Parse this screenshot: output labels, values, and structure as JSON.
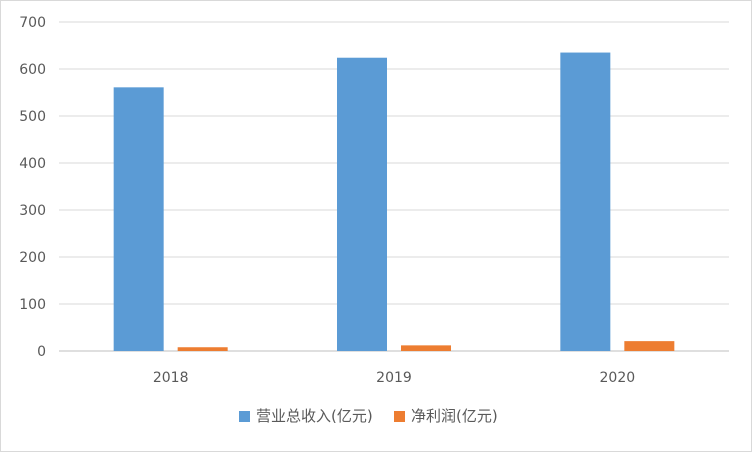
{
  "chart_data": {
    "type": "bar",
    "categories": [
      "2018",
      "2019",
      "2020"
    ],
    "series": [
      {
        "name": "营业总收入(亿元)",
        "values": [
          561,
          624,
          635
        ],
        "color": "#5B9BD5"
      },
      {
        "name": "净利润(亿元)",
        "values": [
          8,
          12,
          21
        ],
        "color": "#ED7D31"
      }
    ],
    "yticks": [
      "0",
      "100",
      "200",
      "300",
      "400",
      "500",
      "600",
      "700"
    ],
    "ylim": [
      0,
      700
    ],
    "grid": true,
    "legend": "bottom"
  }
}
